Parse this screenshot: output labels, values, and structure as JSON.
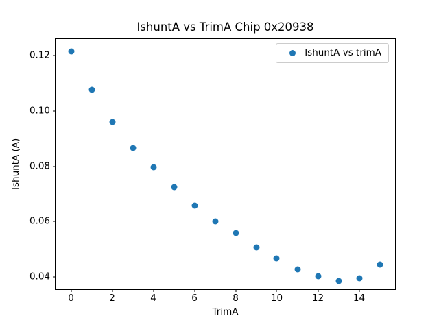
{
  "chart_data": {
    "type": "scatter",
    "title": "IshuntA vs TrimA Chip 0x20938",
    "xlabel": "TrimA",
    "ylabel": "IshuntA (A)",
    "legend": {
      "label": "IshuntA vs trimA",
      "position": "upper right"
    },
    "marker_color": "#1f77b4",
    "grid": false,
    "x": [
      0,
      1,
      2,
      3,
      4,
      5,
      6,
      7,
      8,
      9,
      10,
      11,
      12,
      13,
      14,
      15
    ],
    "y": [
      0.1215,
      0.1077,
      0.096,
      0.0865,
      0.0797,
      0.0724,
      0.0657,
      0.06,
      0.0558,
      0.0507,
      0.0466,
      0.0426,
      0.0402,
      0.0385,
      0.0394,
      0.0445
    ],
    "xlim": [
      -0.75,
      15.75
    ],
    "ylim": [
      0.0355,
      0.126
    ],
    "xticks": [
      0,
      2,
      4,
      6,
      8,
      10,
      12,
      14
    ],
    "xtick_labels": [
      "0",
      "2",
      "4",
      "6",
      "8",
      "10",
      "12",
      "14"
    ],
    "yticks": [
      0.04,
      0.06,
      0.08,
      0.1,
      0.12
    ],
    "ytick_labels": [
      "0.04",
      "0.06",
      "0.08",
      "0.10",
      "0.12"
    ]
  }
}
